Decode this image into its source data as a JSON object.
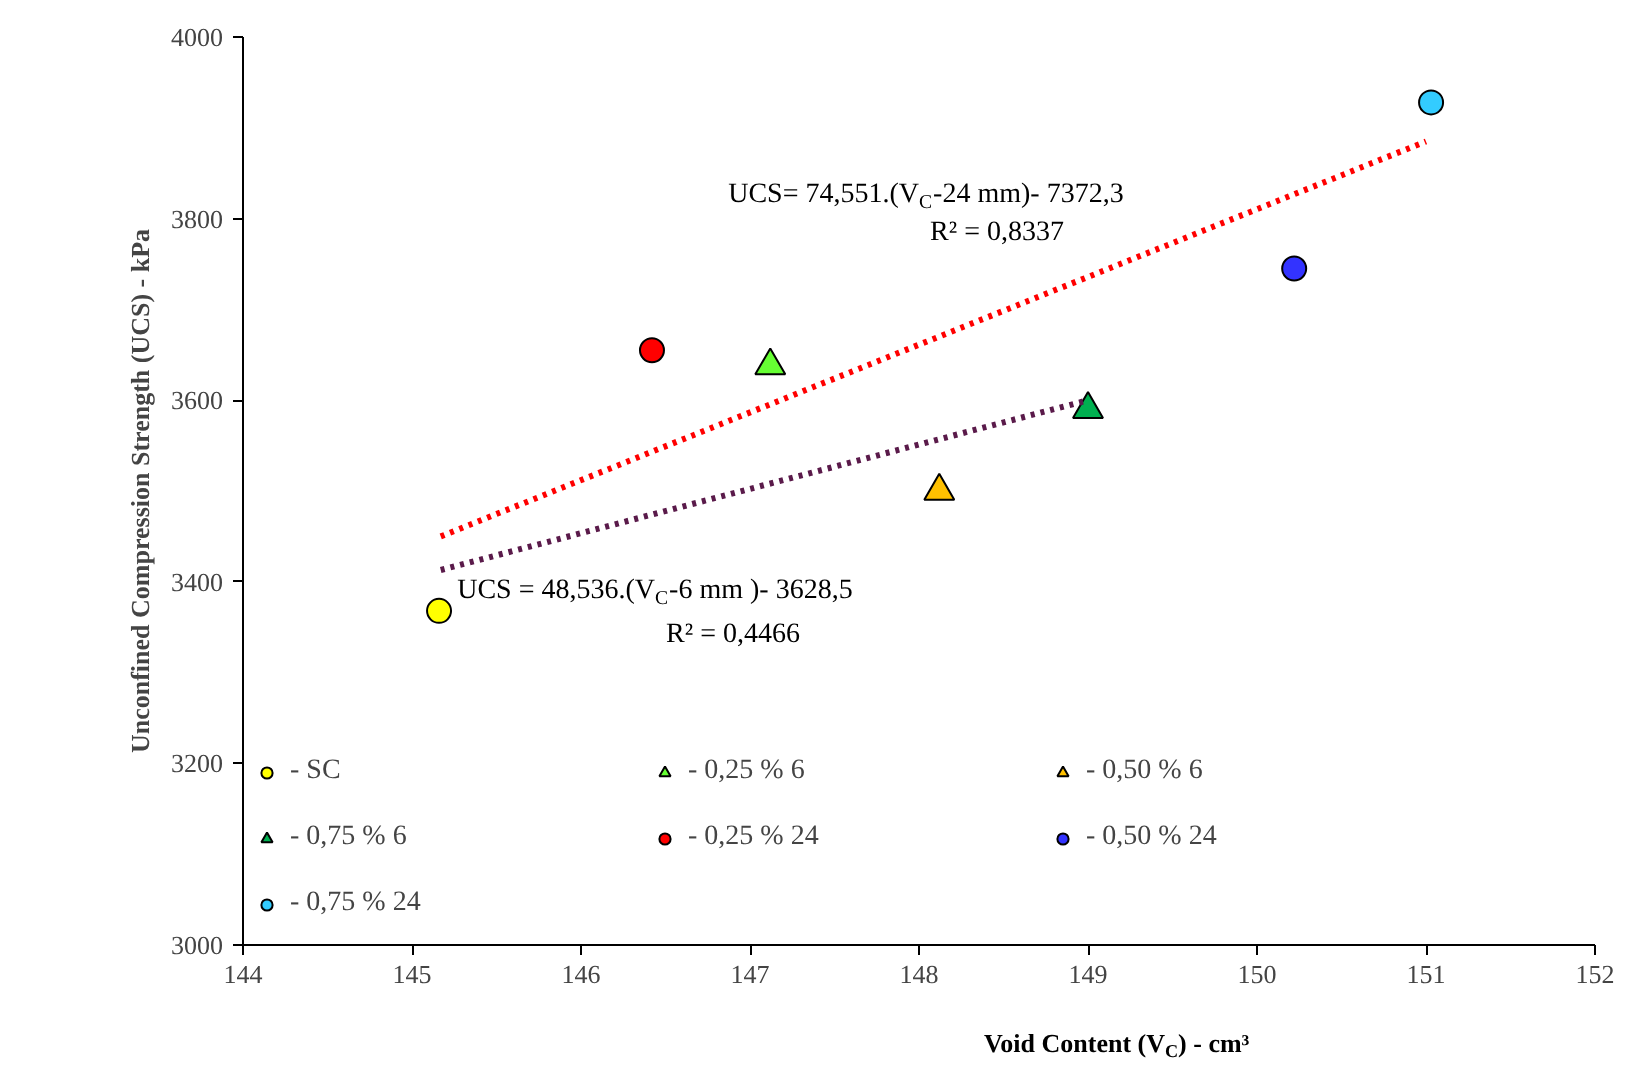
{
  "chart_data": {
    "type": "scatter",
    "xlabel": "Void Content (V$_{C}$) - cm³",
    "ylabel": "Unconfined Compression Strength (UCS) - kPa",
    "xlim": [
      144,
      152
    ],
    "xticks": [
      144,
      145,
      146,
      147,
      148,
      149,
      150,
      151,
      152
    ],
    "ylim": [
      3000,
      4000
    ],
    "yticks": [
      3000,
      3200,
      3400,
      3600,
      3800,
      4000
    ],
    "grid": false,
    "legend": "bottom",
    "series": [
      {
        "name": "- SC",
        "color": "#ffff00",
        "marker": "circle",
        "x": [
          145.16
        ],
        "values": [
          3368
        ]
      },
      {
        "name": "- 0,25 % 6",
        "color": "#66ff33",
        "marker": "triangle",
        "x": [
          147.12
        ],
        "values": [
          3638
        ]
      },
      {
        "name": "- 0,50 % 6",
        "color": "#ffc000",
        "marker": "triangle",
        "x": [
          148.12
        ],
        "values": [
          3500
        ]
      },
      {
        "name": "- 0,75 % 6",
        "color": "#00b050",
        "marker": "triangle",
        "x": [
          149.0
        ],
        "values": [
          3590
        ]
      },
      {
        "name": "- 0,25 % 24",
        "color": "#ff0000",
        "marker": "circle",
        "x": [
          146.42
        ],
        "values": [
          3655
        ]
      },
      {
        "name": "- 0,50 % 24",
        "color": "#3333ff",
        "marker": "circle",
        "x": [
          150.22
        ],
        "values": [
          3745
        ]
      },
      {
        "name": "- 0,75 % 24",
        "color": "#33ccff",
        "marker": "circle",
        "x": [
          151.03
        ],
        "values": [
          3928
        ]
      },
      {
        "type": "line",
        "color": "#ff0000",
        "line_style": "dotted",
        "x": [
          145.17,
          151.0
        ],
        "values": [
          3450,
          3885
        ]
      },
      {
        "type": "line",
        "color": "#5a1a4a",
        "line_style": "dotted",
        "x": [
          145.17,
          149.0
        ],
        "values": [
          3413,
          3600
        ]
      }
    ],
    "annotations": [
      "UCS= 74,551.(V$_{C}$-24 mm)- 7372,3",
      "R² = 0,8337",
      "UCS = 48,536.(V$_{C}$-6 mm )- 3628,5",
      "R² = 0,4466"
    ]
  }
}
